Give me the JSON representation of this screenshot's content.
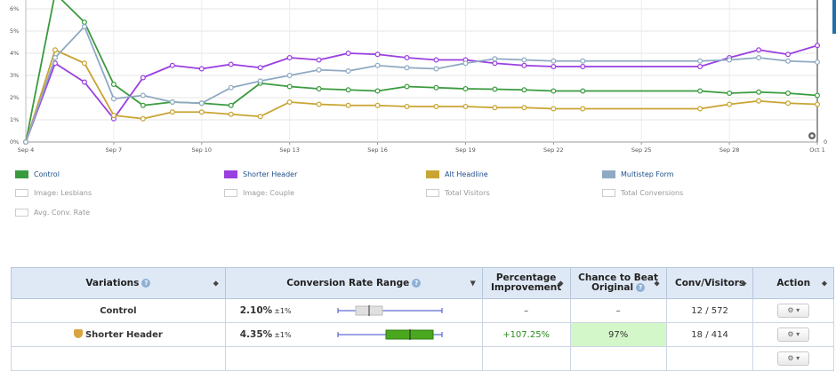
{
  "chart": {
    "y_ticks": [
      "0%",
      "1%",
      "2%",
      "3%",
      "4%",
      "5%",
      "6%"
    ],
    "x_ticks": [
      "Sep 4",
      "Sep 7",
      "Sep 10",
      "Sep 13",
      "Sep 16",
      "Sep 19",
      "Sep 22",
      "Sep 25",
      "Sep 28",
      "Oct 1"
    ],
    "right_tick": "0",
    "colors": {
      "control": "#3a9b3e",
      "shorter": "#9a3fe0",
      "alt": "#c9a432",
      "multi": "#8fa9c3"
    }
  },
  "chart_data": {
    "type": "line",
    "x": [
      "Sep 4",
      "Sep 5",
      "Sep 6",
      "Sep 7",
      "Sep 8",
      "Sep 9",
      "Sep 10",
      "Sep 11",
      "Sep 12",
      "Sep 13",
      "Sep 14",
      "Sep 15",
      "Sep 16",
      "Sep 17",
      "Sep 18",
      "Sep 19",
      "Sep 20",
      "Sep 21",
      "Sep 22",
      "Sep 23",
      "Sep 27",
      "Sep 28",
      "Sep 29",
      "Sep 30",
      "Oct 1"
    ],
    "series": [
      {
        "name": "Control",
        "values": [
          0,
          6.7,
          5.4,
          2.6,
          1.65,
          1.8,
          1.75,
          1.65,
          2.65,
          2.5,
          2.4,
          2.35,
          2.3,
          2.5,
          2.45,
          2.4,
          2.38,
          2.35,
          2.3,
          2.3,
          2.3,
          2.2,
          2.25,
          2.2,
          2.1
        ]
      },
      {
        "name": "Shorter Header",
        "values": [
          0,
          3.55,
          2.7,
          1.05,
          2.9,
          3.45,
          3.3,
          3.5,
          3.35,
          3.8,
          3.7,
          4.0,
          3.95,
          3.8,
          3.7,
          3.7,
          3.55,
          3.45,
          3.4,
          3.4,
          3.4,
          3.8,
          4.15,
          3.95,
          4.35
        ]
      },
      {
        "name": "Alt Headline",
        "values": [
          0,
          4.15,
          3.55,
          1.2,
          1.05,
          1.35,
          1.35,
          1.25,
          1.15,
          1.8,
          1.7,
          1.65,
          1.65,
          1.6,
          1.6,
          1.6,
          1.55,
          1.55,
          1.5,
          1.5,
          1.5,
          1.7,
          1.85,
          1.75,
          1.7
        ]
      },
      {
        "name": "Multistep Form",
        "values": [
          0,
          3.8,
          5.2,
          1.95,
          2.1,
          1.8,
          1.75,
          2.45,
          2.75,
          3.0,
          3.25,
          3.2,
          3.45,
          3.35,
          3.3,
          3.55,
          3.75,
          3.7,
          3.65,
          3.65,
          3.65,
          3.7,
          3.8,
          3.65,
          3.6
        ]
      }
    ],
    "ylim": [
      0,
      6.5
    ],
    "ylabel": "",
    "xlabel": "",
    "title": ""
  },
  "legend": {
    "control": "Control",
    "shorter": "Shorter Header",
    "alt": "Alt Headline",
    "multi": "Multistep Form",
    "lesbians": "Image: Lesbians",
    "couple": "Image: Couple",
    "total_visitors": "Total Visitors",
    "total_conversions": "Total Conversions",
    "avg_rate": "Avg. Conv. Rate"
  },
  "table": {
    "headers": {
      "variations": "Variations",
      "range": "Conversion Rate Range",
      "improvement_1": "Percentage",
      "improvement_2": "Improvement",
      "chance_1": "Chance to Beat",
      "chance_2": "Original",
      "conv": "Conv/Visitors",
      "action": "Action"
    },
    "rows": [
      {
        "name": "Control",
        "rate": "2.10%",
        "pm": "±1%",
        "improvement": "–",
        "chance": "–",
        "conv": "12 / 572",
        "range_value": 2.1
      },
      {
        "name": "Shorter Header",
        "rate": "4.35%",
        "pm": "±1%",
        "improvement": "+107.25%",
        "chance": "97%",
        "conv": "18 / 414",
        "range_value": 4.35
      }
    ]
  }
}
